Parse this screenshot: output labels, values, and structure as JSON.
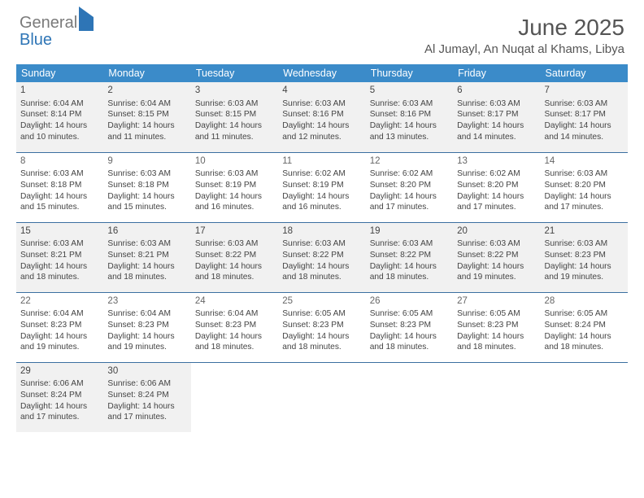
{
  "logo": {
    "part1": "General",
    "part2": "Blue"
  },
  "header": {
    "title": "June 2025",
    "location": "Al Jumayl, An Nuqat al Khams, Libya"
  },
  "colors": {
    "header_bg": "#3b8bc9",
    "header_text": "#ffffff",
    "row_border": "#3b6fa0",
    "shade_bg": "#f1f1f1",
    "logo_gray": "#7a7a7a",
    "logo_blue": "#2e75b6"
  },
  "weekdays": [
    "Sunday",
    "Monday",
    "Tuesday",
    "Wednesday",
    "Thursday",
    "Friday",
    "Saturday"
  ],
  "weeks": [
    {
      "shaded": true,
      "days": [
        {
          "n": "1",
          "sunrise": "Sunrise: 6:04 AM",
          "sunset": "Sunset: 8:14 PM",
          "day1": "Daylight: 14 hours",
          "day2": "and 10 minutes."
        },
        {
          "n": "2",
          "sunrise": "Sunrise: 6:04 AM",
          "sunset": "Sunset: 8:15 PM",
          "day1": "Daylight: 14 hours",
          "day2": "and 11 minutes."
        },
        {
          "n": "3",
          "sunrise": "Sunrise: 6:03 AM",
          "sunset": "Sunset: 8:15 PM",
          "day1": "Daylight: 14 hours",
          "day2": "and 11 minutes."
        },
        {
          "n": "4",
          "sunrise": "Sunrise: 6:03 AM",
          "sunset": "Sunset: 8:16 PM",
          "day1": "Daylight: 14 hours",
          "day2": "and 12 minutes."
        },
        {
          "n": "5",
          "sunrise": "Sunrise: 6:03 AM",
          "sunset": "Sunset: 8:16 PM",
          "day1": "Daylight: 14 hours",
          "day2": "and 13 minutes."
        },
        {
          "n": "6",
          "sunrise": "Sunrise: 6:03 AM",
          "sunset": "Sunset: 8:17 PM",
          "day1": "Daylight: 14 hours",
          "day2": "and 14 minutes."
        },
        {
          "n": "7",
          "sunrise": "Sunrise: 6:03 AM",
          "sunset": "Sunset: 8:17 PM",
          "day1": "Daylight: 14 hours",
          "day2": "and 14 minutes."
        }
      ]
    },
    {
      "shaded": false,
      "days": [
        {
          "n": "8",
          "sunrise": "Sunrise: 6:03 AM",
          "sunset": "Sunset: 8:18 PM",
          "day1": "Daylight: 14 hours",
          "day2": "and 15 minutes."
        },
        {
          "n": "9",
          "sunrise": "Sunrise: 6:03 AM",
          "sunset": "Sunset: 8:18 PM",
          "day1": "Daylight: 14 hours",
          "day2": "and 15 minutes."
        },
        {
          "n": "10",
          "sunrise": "Sunrise: 6:03 AM",
          "sunset": "Sunset: 8:19 PM",
          "day1": "Daylight: 14 hours",
          "day2": "and 16 minutes."
        },
        {
          "n": "11",
          "sunrise": "Sunrise: 6:02 AM",
          "sunset": "Sunset: 8:19 PM",
          "day1": "Daylight: 14 hours",
          "day2": "and 16 minutes."
        },
        {
          "n": "12",
          "sunrise": "Sunrise: 6:02 AM",
          "sunset": "Sunset: 8:20 PM",
          "day1": "Daylight: 14 hours",
          "day2": "and 17 minutes."
        },
        {
          "n": "13",
          "sunrise": "Sunrise: 6:02 AM",
          "sunset": "Sunset: 8:20 PM",
          "day1": "Daylight: 14 hours",
          "day2": "and 17 minutes."
        },
        {
          "n": "14",
          "sunrise": "Sunrise: 6:03 AM",
          "sunset": "Sunset: 8:20 PM",
          "day1": "Daylight: 14 hours",
          "day2": "and 17 minutes."
        }
      ]
    },
    {
      "shaded": true,
      "days": [
        {
          "n": "15",
          "sunrise": "Sunrise: 6:03 AM",
          "sunset": "Sunset: 8:21 PM",
          "day1": "Daylight: 14 hours",
          "day2": "and 18 minutes."
        },
        {
          "n": "16",
          "sunrise": "Sunrise: 6:03 AM",
          "sunset": "Sunset: 8:21 PM",
          "day1": "Daylight: 14 hours",
          "day2": "and 18 minutes."
        },
        {
          "n": "17",
          "sunrise": "Sunrise: 6:03 AM",
          "sunset": "Sunset: 8:22 PM",
          "day1": "Daylight: 14 hours",
          "day2": "and 18 minutes."
        },
        {
          "n": "18",
          "sunrise": "Sunrise: 6:03 AM",
          "sunset": "Sunset: 8:22 PM",
          "day1": "Daylight: 14 hours",
          "day2": "and 18 minutes."
        },
        {
          "n": "19",
          "sunrise": "Sunrise: 6:03 AM",
          "sunset": "Sunset: 8:22 PM",
          "day1": "Daylight: 14 hours",
          "day2": "and 18 minutes."
        },
        {
          "n": "20",
          "sunrise": "Sunrise: 6:03 AM",
          "sunset": "Sunset: 8:22 PM",
          "day1": "Daylight: 14 hours",
          "day2": "and 19 minutes."
        },
        {
          "n": "21",
          "sunrise": "Sunrise: 6:03 AM",
          "sunset": "Sunset: 8:23 PM",
          "day1": "Daylight: 14 hours",
          "day2": "and 19 minutes."
        }
      ]
    },
    {
      "shaded": false,
      "days": [
        {
          "n": "22",
          "sunrise": "Sunrise: 6:04 AM",
          "sunset": "Sunset: 8:23 PM",
          "day1": "Daylight: 14 hours",
          "day2": "and 19 minutes."
        },
        {
          "n": "23",
          "sunrise": "Sunrise: 6:04 AM",
          "sunset": "Sunset: 8:23 PM",
          "day1": "Daylight: 14 hours",
          "day2": "and 19 minutes."
        },
        {
          "n": "24",
          "sunrise": "Sunrise: 6:04 AM",
          "sunset": "Sunset: 8:23 PM",
          "day1": "Daylight: 14 hours",
          "day2": "and 18 minutes."
        },
        {
          "n": "25",
          "sunrise": "Sunrise: 6:05 AM",
          "sunset": "Sunset: 8:23 PM",
          "day1": "Daylight: 14 hours",
          "day2": "and 18 minutes."
        },
        {
          "n": "26",
          "sunrise": "Sunrise: 6:05 AM",
          "sunset": "Sunset: 8:23 PM",
          "day1": "Daylight: 14 hours",
          "day2": "and 18 minutes."
        },
        {
          "n": "27",
          "sunrise": "Sunrise: 6:05 AM",
          "sunset": "Sunset: 8:23 PM",
          "day1": "Daylight: 14 hours",
          "day2": "and 18 minutes."
        },
        {
          "n": "28",
          "sunrise": "Sunrise: 6:05 AM",
          "sunset": "Sunset: 8:24 PM",
          "day1": "Daylight: 14 hours",
          "day2": "and 18 minutes."
        }
      ]
    },
    {
      "shaded": true,
      "days": [
        {
          "n": "29",
          "sunrise": "Sunrise: 6:06 AM",
          "sunset": "Sunset: 8:24 PM",
          "day1": "Daylight: 14 hours",
          "day2": "and 17 minutes."
        },
        {
          "n": "30",
          "sunrise": "Sunrise: 6:06 AM",
          "sunset": "Sunset: 8:24 PM",
          "day1": "Daylight: 14 hours",
          "day2": "and 17 minutes."
        },
        null,
        null,
        null,
        null,
        null
      ]
    }
  ]
}
